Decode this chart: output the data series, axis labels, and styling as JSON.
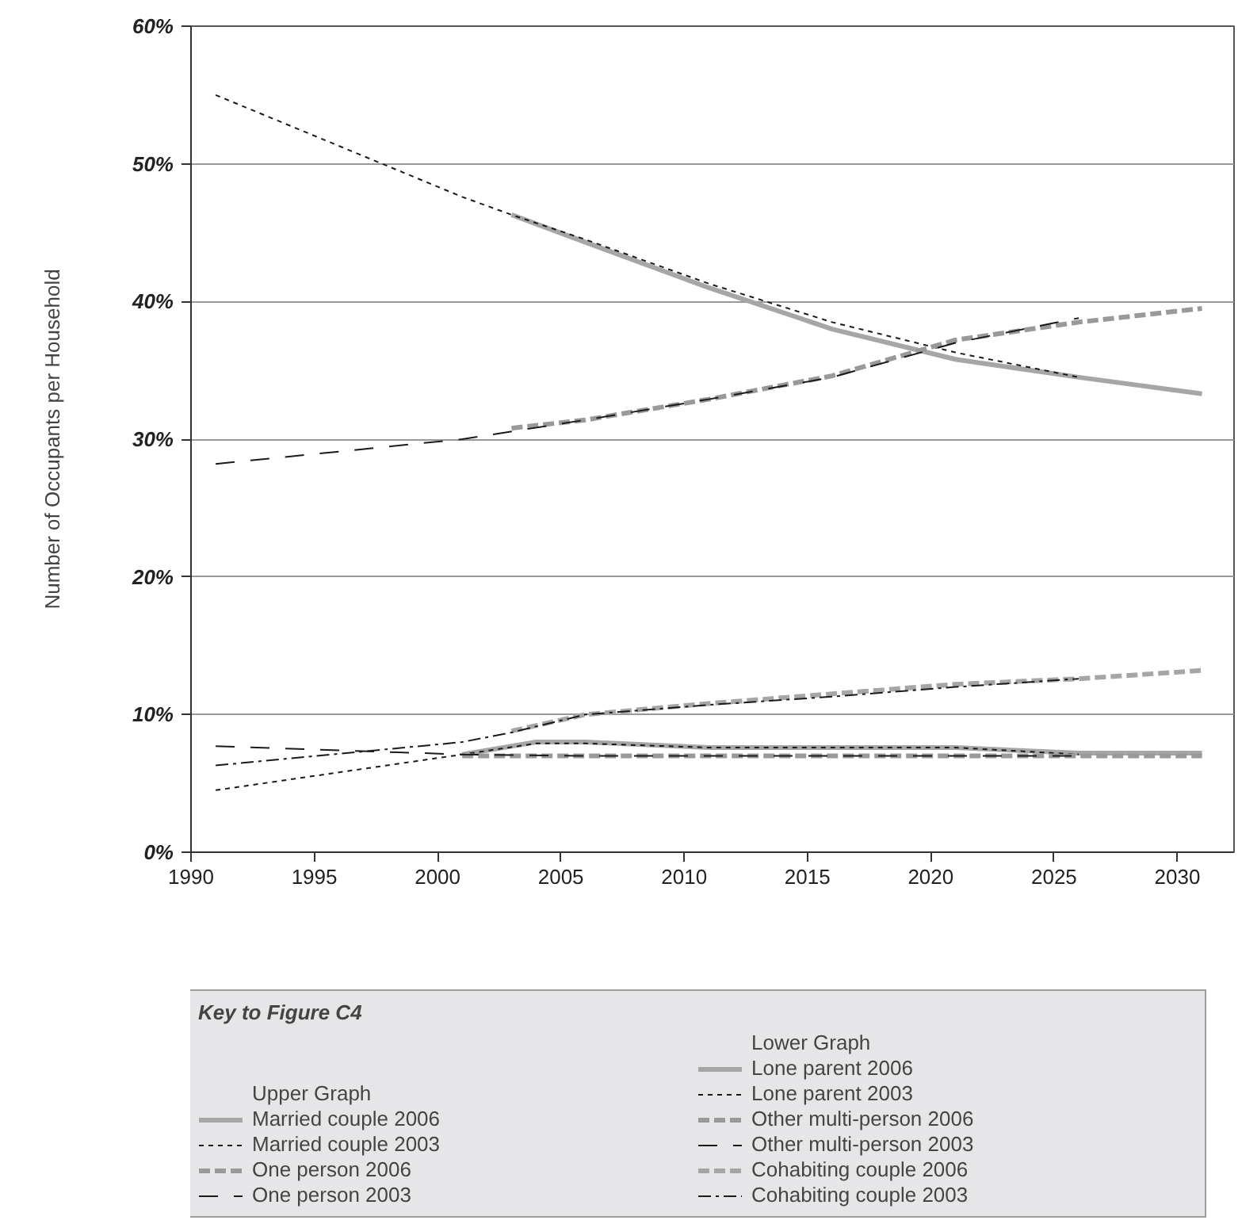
{
  "chart_data": {
    "type": "line",
    "ylabel": "Number of Occupants per Household",
    "legend_title": "Key to Figure C4",
    "annotations": [
      "Upper Graph",
      "Lower Graph"
    ],
    "xlim": [
      1990,
      2032.3
    ],
    "xticks": [
      1990,
      1995,
      2000,
      2005,
      2010,
      2015,
      2020,
      2025,
      2030
    ],
    "ylim": [
      0,
      60
    ],
    "yticks": [
      {
        "value": 0,
        "label": "0%"
      },
      {
        "value": 10,
        "label": "10%"
      },
      {
        "value": 20,
        "label": "20%"
      },
      {
        "value": 30,
        "label": "30%"
      },
      {
        "value": 40,
        "label": "40%"
      },
      {
        "value": 50,
        "label": "50%"
      },
      {
        "value": 60,
        "label": "60%"
      }
    ],
    "grid": "y",
    "legend": "bottom",
    "marker": "none",
    "series": [
      {
        "name": "Married couple 2006",
        "color": "#a6a6a6",
        "line_style": "solid",
        "x": [
          2003,
          2006,
          2011,
          2016,
          2021,
          2026,
          2031
        ],
        "values": [
          46.3,
          44.3,
          41.0,
          38.0,
          35.8,
          34.5,
          33.3
        ]
      },
      {
        "name": "Married couple 2003",
        "color": "#1a1a1a",
        "line_style": "dotted",
        "x": [
          1991,
          2001,
          2003,
          2006,
          2011,
          2016,
          2021,
          2026
        ],
        "values": [
          55.0,
          47.6,
          46.3,
          44.5,
          41.3,
          38.5,
          36.3,
          34.5
        ]
      },
      {
        "name": "One person 2006",
        "color": "#999999",
        "line_style": "dashed",
        "x": [
          2003,
          2006,
          2011,
          2016,
          2021,
          2026,
          2031
        ],
        "values": [
          30.8,
          31.4,
          32.9,
          34.6,
          37.2,
          38.5,
          39.5
        ]
      },
      {
        "name": "One person 2003",
        "color": "#1a1a1a",
        "line_style": "longdash",
        "x": [
          1991,
          2001,
          2006,
          2011,
          2016,
          2021,
          2026
        ],
        "values": [
          28.2,
          30.0,
          31.4,
          32.9,
          34.5,
          37.0,
          38.8
        ]
      },
      {
        "name": "Lone parent 2006",
        "color": "#a6a6a6",
        "line_style": "solid",
        "x": [
          2001,
          2004,
          2006,
          2011,
          2016,
          2021,
          2026,
          2031
        ],
        "values": [
          7.1,
          8.0,
          8.0,
          7.6,
          7.6,
          7.6,
          7.2,
          7.2
        ]
      },
      {
        "name": "Lone parent 2003",
        "color": "#1a1a1a",
        "line_style": "dotted",
        "x": [
          1991,
          2001,
          2004,
          2006,
          2011,
          2016,
          2021,
          2026
        ],
        "values": [
          4.5,
          7.1,
          7.9,
          7.9,
          7.6,
          7.6,
          7.6,
          7.1
        ]
      },
      {
        "name": "Other multi-person 2006",
        "color": "#999999",
        "line_style": "dashed",
        "x": [
          2001,
          2006,
          2011,
          2016,
          2021,
          2026,
          2031
        ],
        "values": [
          7.0,
          7.0,
          7.0,
          7.0,
          7.0,
          7.0,
          7.0
        ]
      },
      {
        "name": "Other multi-person 2003",
        "color": "#1a1a1a",
        "line_style": "longdash",
        "x": [
          1991,
          2001,
          2006,
          2011,
          2016,
          2021,
          2026
        ],
        "values": [
          7.7,
          7.1,
          7.0,
          7.0,
          7.0,
          7.0,
          7.0
        ]
      },
      {
        "name": "Cohabiting couple 2006",
        "color": "#a6a6a6",
        "line_style": "dashed",
        "x": [
          2003,
          2006,
          2011,
          2016,
          2021,
          2026,
          2031
        ],
        "values": [
          8.8,
          10.0,
          10.8,
          11.5,
          12.2,
          12.6,
          13.2
        ]
      },
      {
        "name": "Cohabiting couple 2003",
        "color": "#1a1a1a",
        "line_style": "dashdot",
        "x": [
          1991,
          2001,
          2003,
          2006,
          2011,
          2016,
          2021,
          2026
        ],
        "values": [
          6.3,
          8.0,
          8.7,
          10.0,
          10.7,
          11.3,
          12.0,
          12.6
        ]
      }
    ]
  }
}
